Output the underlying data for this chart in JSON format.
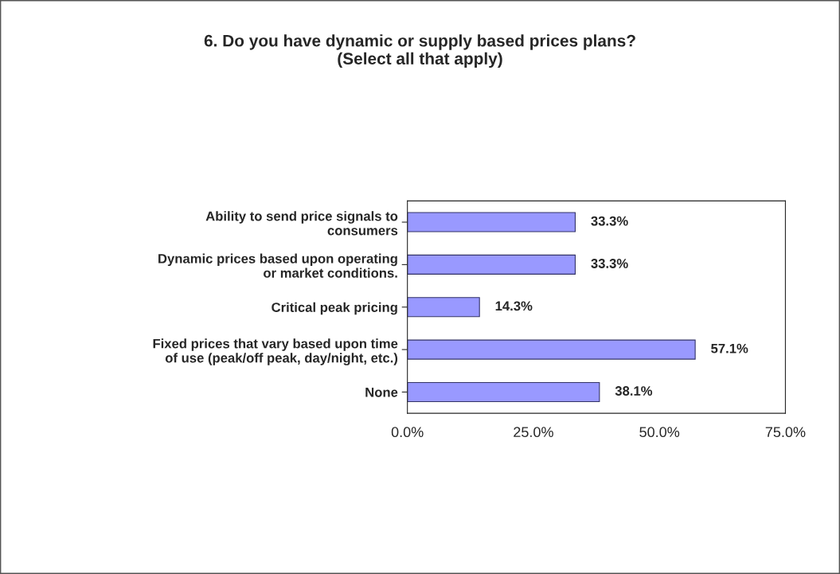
{
  "chart_data": {
    "type": "bar",
    "orientation": "horizontal",
    "title": "6. Do you have dynamic or supply based prices plans?\n(Select all that apply)",
    "categories": [
      "Ability to send price signals to\nconsumers",
      "Dynamic prices based upon operating\nor market conditions.",
      "Critical peak pricing",
      "Fixed prices that vary based upon time\nof use (peak/off peak, day/night, etc.)",
      "None"
    ],
    "values": [
      33.3,
      33.3,
      14.3,
      57.1,
      38.1
    ],
    "value_labels": [
      "33.3%",
      "33.3%",
      "14.3%",
      "57.1%",
      "38.1%"
    ],
    "color": "#9999ff",
    "xlim": [
      0,
      75
    ],
    "xticks": [
      {
        "value": 0,
        "label": "0.0%"
      },
      {
        "value": 25,
        "label": "25.0%"
      },
      {
        "value": 50,
        "label": "50.0%"
      },
      {
        "value": 75,
        "label": "75.0%"
      }
    ],
    "grid": false,
    "legend": false
  }
}
